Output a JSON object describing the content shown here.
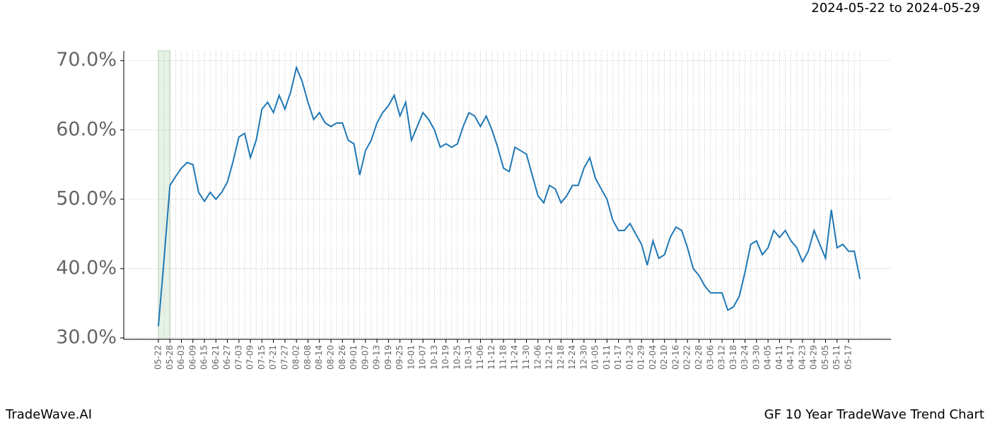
{
  "header": {
    "range": "2024-05-22 to 2024-05-29"
  },
  "footer": {
    "brand": "TradeWave.AI",
    "caption": "GF 10 Year TradeWave Trend Chart"
  },
  "chart_data": {
    "type": "line",
    "color": "#1f77b4",
    "grid": true,
    "categories": [
      "05-22",
      null,
      "05-28",
      null,
      "06-03",
      null,
      "06-09",
      null,
      "06-15",
      null,
      "06-21",
      null,
      "06-27",
      null,
      "07-03",
      null,
      "07-09",
      null,
      "07-15",
      null,
      "07-21",
      null,
      "07-27",
      null,
      "08-02",
      null,
      "08-08",
      null,
      "08-14",
      null,
      "08-20",
      null,
      "08-26",
      null,
      "09-01",
      null,
      "09-07",
      null,
      "09-13",
      null,
      "09-19",
      null,
      "09-25",
      null,
      "10-01",
      null,
      "10-07",
      null,
      "10-13",
      null,
      "10-19",
      null,
      "10-25",
      null,
      "10-31",
      null,
      "11-06",
      null,
      "11-12",
      null,
      "11-18",
      null,
      "11-24",
      null,
      "11-30",
      null,
      "12-06",
      null,
      "12-12",
      null,
      "12-18",
      null,
      "12-24",
      null,
      "12-30",
      null,
      "01-05",
      null,
      "01-11",
      null,
      "01-17",
      null,
      "01-23",
      null,
      "01-29",
      null,
      "02-04",
      null,
      "02-10",
      null,
      "02-16",
      null,
      "02-22",
      null,
      "02-28",
      null,
      "03-06",
      null,
      "03-12",
      null,
      "03-18",
      null,
      "03-24",
      null,
      "03-30",
      null,
      "04-05",
      null,
      "04-11",
      null,
      "04-17",
      null,
      "04-23",
      null,
      "04-29",
      null,
      "05-05",
      null,
      "05-11",
      null,
      "05-17",
      null,
      null
    ],
    "values": [
      31.7,
      41.5,
      52,
      53.3,
      54.5,
      55.3,
      55,
      51,
      49.7,
      51,
      50,
      51,
      52.5,
      55.5,
      59,
      59.5,
      56,
      58.5,
      63,
      64,
      62.5,
      65,
      63,
      65.5,
      69,
      67,
      64,
      61.5,
      62.5,
      61,
      60.5,
      61,
      61,
      58.5,
      58,
      53.5,
      57,
      58.5,
      61,
      62.5,
      63.5,
      65,
      62,
      64,
      58.5,
      60.5,
      62.5,
      61.5,
      60,
      57.5,
      58,
      57.5,
      58,
      60.5,
      62.5,
      62,
      60.5,
      62,
      60,
      57.5,
      54.5,
      54,
      57.5,
      57,
      56.5,
      53.5,
      50.5,
      49.5,
      52,
      51.5,
      49.5,
      50.5,
      52,
      52,
      54.5,
      56,
      53,
      51.5,
      50,
      47,
      45.5,
      45.5,
      46.5,
      45,
      43.5,
      40.5,
      44,
      41.5,
      42,
      44.5,
      46,
      45.5,
      43,
      40,
      39,
      37.5,
      36.5,
      36.5,
      36.5,
      34,
      34.5,
      36,
      39.5,
      43.5,
      44,
      42,
      43,
      45.5,
      44.5,
      45.5,
      44,
      43,
      41,
      42.5,
      45.5,
      43.5,
      41.5,
      48.5,
      43,
      43.5,
      42.5,
      42.5,
      38.5
    ],
    "ylim": [
      29.8,
      71.4
    ],
    "yticks": [
      {
        "value": 30,
        "label": "30.0%"
      },
      {
        "value": 40,
        "label": "40.0%"
      },
      {
        "value": 50,
        "label": "50.0%"
      },
      {
        "value": 60,
        "label": "60.0%"
      },
      {
        "value": 70,
        "label": "70.0%"
      }
    ]
  }
}
